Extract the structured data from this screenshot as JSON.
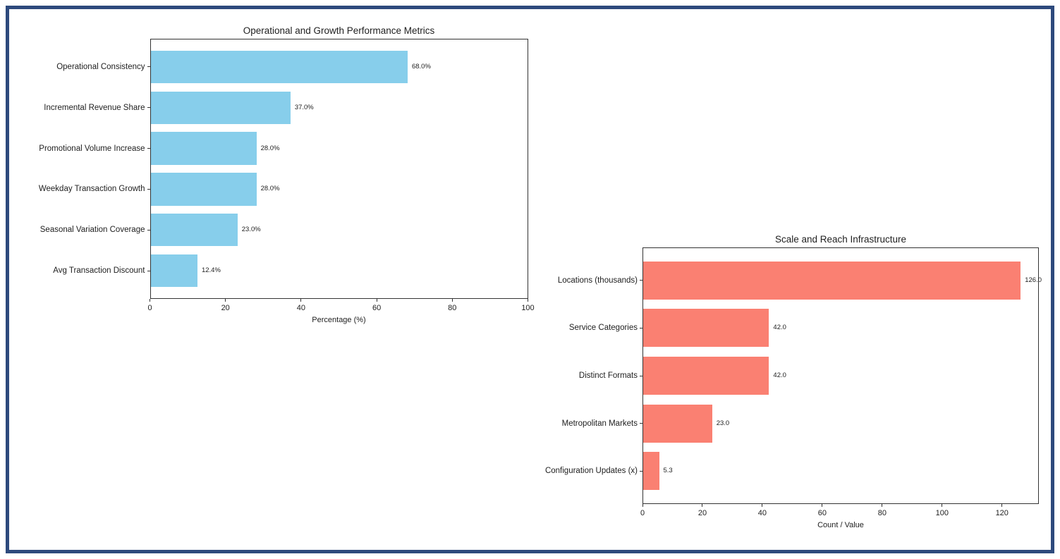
{
  "page": {
    "background": "#ffffff"
  },
  "colors": {
    "frame_border": "#2e4a7d",
    "spine": "#333333",
    "text": "#212121",
    "chart1_bar": "#87ceeb",
    "chart2_bar": "#fa8072"
  },
  "chart_data": [
    {
      "type": "bar",
      "orientation": "horizontal",
      "title": "Operational and Growth Performance Metrics",
      "categories": [
        "Operational Consistency",
        "Incremental Revenue Share",
        "Promotional Volume Increase",
        "Weekday Transaction Growth",
        "Seasonal Variation Coverage",
        "Avg Transaction Discount"
      ],
      "values": [
        68.0,
        37.0,
        28.0,
        28.0,
        23.0,
        12.4
      ],
      "value_labels": [
        "68.0%",
        "37.0%",
        "28.0%",
        "28.0%",
        "23.0%",
        "12.4%"
      ],
      "xlabel": "Percentage (%)",
      "ylabel": "",
      "xlim": [
        0,
        100
      ],
      "xticks": [
        0,
        20,
        40,
        60,
        80,
        100
      ],
      "xtick_labels": [
        "0",
        "20",
        "40",
        "60",
        "80",
        "100"
      ],
      "bar_color": "#87ceeb",
      "grid": false,
      "legend": null
    },
    {
      "type": "bar",
      "orientation": "horizontal",
      "title": "Scale and Reach Infrastructure",
      "categories": [
        "Locations (thousands)",
        "Service Categories",
        "Distinct Formats",
        "Metropolitan Markets",
        "Configuration Updates (x)"
      ],
      "values": [
        126.0,
        42.0,
        42.0,
        23.0,
        5.3
      ],
      "value_labels": [
        "126.0",
        "42.0",
        "42.0",
        "23.0",
        "5.3"
      ],
      "xlabel": "Count / Value",
      "ylabel": "",
      "xlim": [
        0,
        132.3
      ],
      "xticks": [
        0,
        20,
        40,
        60,
        80,
        100,
        120
      ],
      "xtick_labels": [
        "0",
        "20",
        "40",
        "60",
        "80",
        "100",
        "120"
      ],
      "bar_color": "#fa8072",
      "grid": false,
      "legend": null
    }
  ]
}
